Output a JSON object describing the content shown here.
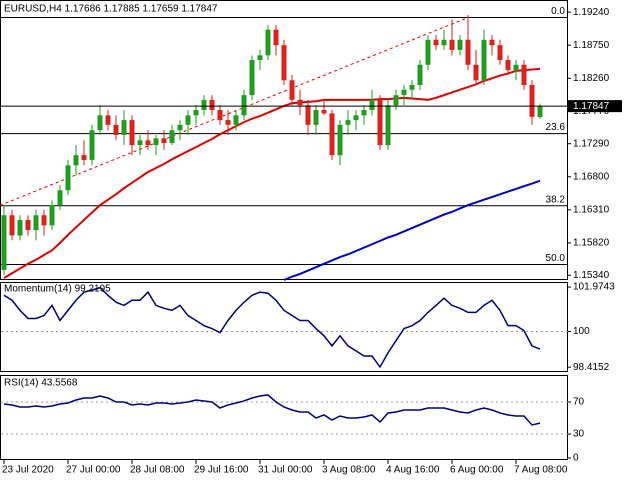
{
  "chart_data": [
    {
      "type": "candlestick",
      "title": "EURUSD,H4  1.17686 1.17885 1.17659 1.17847",
      "categories": [
        "23 Jul 2020",
        null,
        null,
        null,
        null,
        null,
        null,
        null,
        "27 Jul 00:00",
        null,
        null,
        null,
        null,
        null,
        null,
        null,
        "28 Jul 08:00",
        null,
        null,
        null,
        null,
        null,
        null,
        null,
        "29 Jul 16:00",
        null,
        null,
        null,
        null,
        null,
        null,
        null,
        "31 Jul 00:00",
        null,
        null,
        null,
        null,
        null,
        null,
        null,
        "3 Aug 08:00",
        null,
        null,
        null,
        null,
        null,
        null,
        null,
        "4 Aug 16:00",
        null,
        null,
        null,
        null,
        null,
        null,
        null,
        "6 Aug 00:00",
        null,
        null,
        null,
        null,
        null,
        null,
        null,
        "7 Aug 08:00",
        null,
        null,
        null
      ],
      "open": [
        1.1542,
        1.1623,
        1.1593,
        1.1616,
        1.1601,
        1.1623,
        1.1608,
        1.1638,
        1.166,
        1.1697,
        1.1712,
        1.1705,
        1.1749,
        1.1771,
        1.1757,
        1.1742,
        1.1764,
        1.1727,
        1.1734,
        1.1727,
        1.1737,
        1.173,
        1.1749,
        1.1757,
        1.1771,
        1.1779,
        1.1794,
        1.1779,
        1.1764,
        1.1757,
        1.1771,
        1.1801,
        1.1853,
        1.186,
        1.1898,
        1.1875,
        1.1823,
        1.1794,
        1.1786,
        1.1757,
        1.1779,
        1.1774,
        1.1712,
        1.1757,
        1.1764,
        1.1771,
        1.1779,
        1.1794,
        1.1727,
        1.1786,
        1.1801,
        1.1809,
        1.1816,
        1.1846,
        1.1883,
        1.1875,
        1.1883,
        1.1868,
        1.1883,
        1.1846,
        1.1823,
        1.1883,
        1.1875,
        1.1853,
        1.1838,
        1.1846,
        1.1816,
        1.17686
      ],
      "high": [
        1.1638,
        1.1631,
        1.1623,
        1.1623,
        1.1631,
        1.1631,
        1.1645,
        1.1668,
        1.1705,
        1.1727,
        1.1734,
        1.1757,
        1.1786,
        1.1779,
        1.1771,
        1.1779,
        1.1771,
        1.1742,
        1.1749,
        1.1742,
        1.1749,
        1.1757,
        1.1764,
        1.1779,
        1.1786,
        1.1801,
        1.1801,
        1.1786,
        1.1779,
        1.1779,
        1.1809,
        1.186,
        1.1868,
        1.1905,
        1.1905,
        1.1883,
        1.1831,
        1.1809,
        1.1794,
        1.1786,
        1.1794,
        1.1779,
        1.1764,
        1.1779,
        1.1779,
        1.1786,
        1.1809,
        1.1801,
        1.1794,
        1.1809,
        1.1816,
        1.1823,
        1.1853,
        1.189,
        1.189,
        1.1898,
        1.1913,
        1.189,
        1.192,
        1.1868,
        1.1898,
        1.189,
        1.1883,
        1.186,
        1.1853,
        1.1853,
        1.1823,
        1.17885
      ],
      "low": [
        1.1534,
        1.1586,
        1.1586,
        1.1593,
        1.1586,
        1.1593,
        1.1601,
        1.1631,
        1.1653,
        1.1682,
        1.1697,
        1.1697,
        1.1742,
        1.1749,
        1.1734,
        1.1727,
        1.1712,
        1.1712,
        1.172,
        1.1712,
        1.172,
        1.1727,
        1.1734,
        1.1742,
        1.1757,
        1.1771,
        1.1771,
        1.1757,
        1.1742,
        1.1749,
        1.1764,
        1.1794,
        1.1838,
        1.1853,
        1.186,
        1.1816,
        1.1786,
        1.1771,
        1.1742,
        1.1742,
        1.1771,
        1.1705,
        1.1697,
        1.1742,
        1.1749,
        1.1757,
        1.1771,
        1.172,
        1.172,
        1.1779,
        1.1786,
        1.1794,
        1.1809,
        1.1838,
        1.1868,
        1.1868,
        1.186,
        1.186,
        1.1838,
        1.1816,
        1.1816,
        1.186,
        1.1846,
        1.1831,
        1.1823,
        1.1809,
        1.1757,
        1.17659
      ],
      "close": [
        1.1623,
        1.1593,
        1.1616,
        1.1601,
        1.1623,
        1.1608,
        1.1638,
        1.166,
        1.1697,
        1.1712,
        1.1705,
        1.1749,
        1.1771,
        1.1757,
        1.1742,
        1.1764,
        1.1727,
        1.1734,
        1.1727,
        1.1737,
        1.173,
        1.1749,
        1.1757,
        1.1771,
        1.1779,
        1.1794,
        1.1779,
        1.1764,
        1.1757,
        1.1771,
        1.1801,
        1.1853,
        1.186,
        1.1898,
        1.1875,
        1.1823,
        1.1794,
        1.1786,
        1.1757,
        1.1779,
        1.1774,
        1.1712,
        1.1757,
        1.1764,
        1.1771,
        1.1779,
        1.1794,
        1.1727,
        1.1786,
        1.1801,
        1.1809,
        1.1816,
        1.1846,
        1.1883,
        1.1875,
        1.1883,
        1.1868,
        1.1883,
        1.1846,
        1.1823,
        1.1883,
        1.1875,
        1.1853,
        1.1838,
        1.1846,
        1.1816,
        1.1769,
        1.17847
      ],
      "up_color": "#1e9e1e",
      "down_color": "#e01e1e",
      "series": [
        {
          "color": "#e00000",
          "values": [
            1.153,
            1.1537,
            1.1544,
            1.1551,
            1.1557,
            1.1564,
            1.1571,
            1.1582,
            1.1594,
            1.1605,
            1.1616,
            1.1627,
            1.1638,
            1.1646,
            1.1654,
            1.1663,
            1.1671,
            1.1679,
            1.1687,
            1.1693,
            1.1699,
            1.1706,
            1.1712,
            1.1718,
            1.1724,
            1.173,
            1.1736,
            1.1743,
            1.1749,
            1.1755,
            1.1761,
            1.1766,
            1.177,
            1.1775,
            1.178,
            1.1785,
            1.1789,
            1.179,
            1.1791,
            1.1792,
            1.1794,
            1.1794,
            1.1794,
            1.1794,
            1.1794,
            1.1794,
            1.1794,
            1.1795,
            1.1795,
            1.1796,
            1.1797,
            1.1796,
            1.1795,
            1.1794,
            1.1797,
            1.1801,
            1.1805,
            1.1809,
            1.1813,
            1.1817,
            1.1822,
            1.1826,
            1.183,
            1.1833,
            1.1837,
            1.1838,
            1.1839,
            1.184
          ]
        },
        {
          "color": "#0000c8",
          "values": [
            null,
            null,
            null,
            null,
            null,
            null,
            null,
            null,
            null,
            null,
            null,
            null,
            null,
            null,
            null,
            null,
            null,
            null,
            null,
            null,
            null,
            null,
            null,
            null,
            null,
            null,
            null,
            null,
            null,
            null,
            null,
            null,
            null,
            null,
            null,
            1.1527,
            1.1532,
            1.1536,
            1.1541,
            1.1546,
            1.1551,
            1.1556,
            1.1561,
            1.1565,
            1.157,
            1.1575,
            1.158,
            1.1585,
            1.159,
            1.1594,
            1.1599,
            1.1604,
            1.1609,
            1.1614,
            1.1619,
            1.1624,
            1.1628,
            1.1633,
            1.1638,
            1.1642,
            1.1646,
            1.165,
            1.1654,
            1.1658,
            1.1662,
            1.1666,
            1.167,
            1.1674
          ]
        }
      ],
      "trendline": {
        "x": [
          0,
          58
        ],
        "values": [
          1.164,
          1.1916
        ],
        "color": "#e00000"
      },
      "levels": [
        {
          "value": 1.1916,
          "label": "0.0"
        },
        {
          "value": 1.1744,
          "label": "23.6"
        },
        {
          "value": 1.1637,
          "label": "38.2"
        },
        {
          "value": 1.155,
          "label": "50.0"
        }
      ],
      "last_price": {
        "value": 1.17847,
        "label": "1.17847"
      },
      "ylim": [
        1.1527,
        1.1942
      ],
      "yticks": [
        {
          "value": 1.1924,
          "label": "1.19240"
        },
        {
          "value": 1.1875,
          "label": "1.18750"
        },
        {
          "value": 1.1826,
          "label": "1.18260"
        },
        {
          "value": 1.1777,
          "label": "1.17770"
        },
        {
          "value": 1.1729,
          "label": "1.17290"
        },
        {
          "value": 1.168,
          "label": "1.16800"
        },
        {
          "value": 1.1631,
          "label": "1.16310"
        },
        {
          "value": 1.1582,
          "label": "1.15820"
        },
        {
          "value": 1.1534,
          "label": "1.15340"
        }
      ]
    },
    {
      "type": "line",
      "title": "Momentum(14) 99.2195",
      "color": "#000080",
      "values": [
        101.61,
        101.39,
        100.94,
        100.58,
        100.58,
        100.71,
        101.16,
        100.49,
        100.94,
        101.39,
        101.75,
        101.84,
        101.95,
        101.61,
        101.3,
        101.16,
        101.39,
        101.39,
        101.75,
        101.16,
        101.03,
        100.94,
        101.16,
        100.71,
        100.49,
        100.26,
        100.13,
        99.95,
        100.49,
        100.94,
        101.3,
        101.61,
        101.75,
        101.7,
        101.39,
        100.94,
        100.71,
        100.49,
        100.49,
        100.13,
        99.81,
        99.36,
        99.81,
        99.36,
        99.14,
        98.91,
        98.91,
        98.42,
        99.05,
        99.59,
        100.13,
        100.26,
        100.49,
        100.85,
        101.16,
        101.48,
        101.16,
        101.03,
        100.85,
        100.85,
        101.16,
        101.39,
        100.94,
        100.26,
        100.26,
        100.04,
        99.36,
        99.2195
      ],
      "ylim": [
        98.2,
        102.2
      ],
      "yticks": [
        101.9743,
        100,
        98.4152
      ],
      "levels": [
        100
      ]
    },
    {
      "type": "line",
      "title": "RSI(14) 43.5568",
      "color": "#000080",
      "values": [
        67.5,
        66.3,
        63.8,
        63.8,
        65,
        63.8,
        65,
        67.5,
        68.8,
        72.5,
        75,
        75,
        77.5,
        75,
        70,
        70,
        66.3,
        67.5,
        66.3,
        68.8,
        68.8,
        67.5,
        68.8,
        70,
        72.5,
        71.3,
        70,
        62.5,
        66.3,
        68.8,
        71.3,
        75,
        77.5,
        78.8,
        70,
        63.8,
        60,
        57.5,
        57.5,
        50,
        53.8,
        47.5,
        52.5,
        50,
        50,
        51.3,
        53.8,
        45,
        56.3,
        57.5,
        60,
        60,
        60,
        62.5,
        62.5,
        62.5,
        60,
        57.5,
        56.3,
        60,
        62.5,
        60,
        56.3,
        53.8,
        52.5,
        52.5,
        41.3,
        43.5568
      ],
      "ylim": [
        -2.5,
        103.75
      ],
      "yticks": [
        70,
        30,
        0
      ],
      "levels": [
        30,
        70
      ]
    }
  ]
}
